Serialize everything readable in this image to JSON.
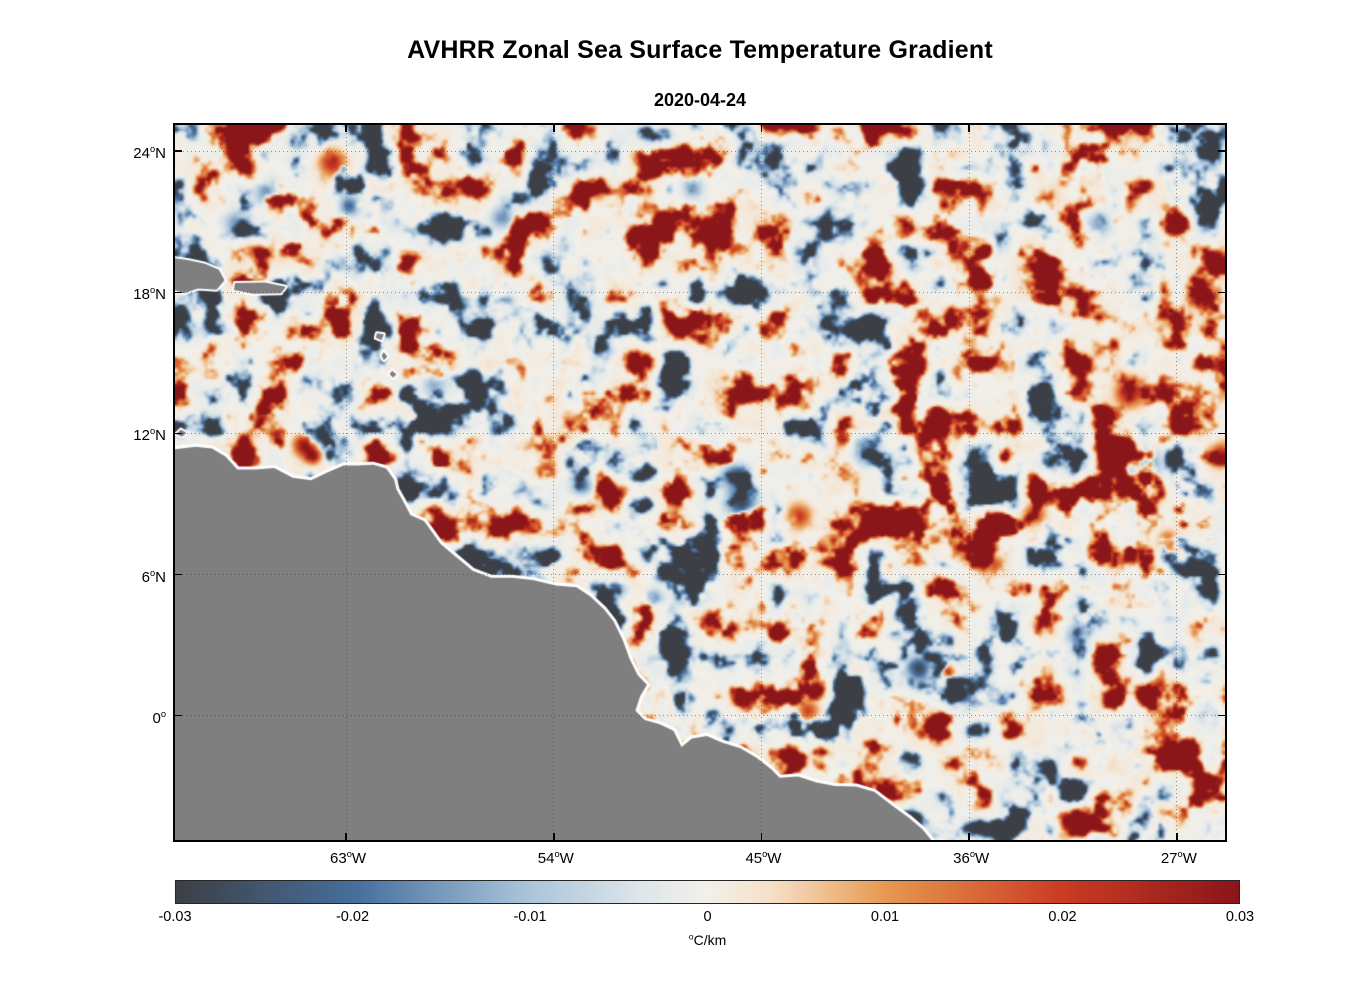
{
  "figure": {
    "title": "AVHRR Zonal Sea Surface Temperature Gradient",
    "subtitle": "2020-04-24"
  },
  "chart_data": {
    "type": "heatmap",
    "title": "AVHRR Zonal Sea Surface Temperature Gradient",
    "date": "2020-04-24",
    "units": "°C/km",
    "lon_range": [
      -70.5,
      -25.0
    ],
    "lat_range": [
      -5.2,
      25.2
    ],
    "lon_ticks": [
      {
        "value": -63,
        "base": "63",
        "sup": "o",
        "suffix": "W"
      },
      {
        "value": -54,
        "base": "54",
        "sup": "o",
        "suffix": "W"
      },
      {
        "value": -45,
        "base": "45",
        "sup": "o",
        "suffix": "W"
      },
      {
        "value": -36,
        "base": "36",
        "sup": "o",
        "suffix": "W"
      },
      {
        "value": -27,
        "base": "27",
        "sup": "o",
        "suffix": "W"
      }
    ],
    "lat_ticks": [
      {
        "value": 24,
        "base": "24",
        "sup": "o",
        "suffix": "N"
      },
      {
        "value": 18,
        "base": "18",
        "sup": "o",
        "suffix": "N"
      },
      {
        "value": 12,
        "base": "12",
        "sup": "o",
        "suffix": "N"
      },
      {
        "value": 6,
        "base": "6",
        "sup": "o",
        "suffix": "N"
      },
      {
        "value": 0,
        "base": "0",
        "sup": "o",
        "suffix": ""
      }
    ],
    "grid": {
      "style": "dotted",
      "color": "rgba(30,55,150,0.55)"
    },
    "colorbar": {
      "min": -0.03,
      "max": 0.03,
      "tick_values": [
        -0.03,
        -0.02,
        -0.01,
        0,
        0.01,
        0.02,
        0.03
      ],
      "tick_labels": [
        "-0.03",
        "-0.02",
        "-0.01",
        "0",
        "0.01",
        "0.02",
        "0.03"
      ],
      "unit_sup": "o",
      "unit_text": "C/km"
    },
    "colormap": [
      [
        0.0,
        "#3c3f44"
      ],
      [
        0.17,
        "#476f9e"
      ],
      [
        0.33,
        "#a9c4da"
      ],
      [
        0.44,
        "#dfe7ea"
      ],
      [
        0.5,
        "#f2f0ea"
      ],
      [
        0.56,
        "#f6e0c8"
      ],
      [
        0.67,
        "#e6974e"
      ],
      [
        0.83,
        "#cc3d24"
      ],
      [
        1.0,
        "#8a1519"
      ]
    ],
    "land": {
      "color": "#7f7f7f",
      "halo": "#ffffff",
      "mainland": [
        [
          -70.6,
          11.4
        ],
        [
          -69.6,
          11.52
        ],
        [
          -68.9,
          11.45
        ],
        [
          -68.3,
          11.1
        ],
        [
          -67.8,
          10.55
        ],
        [
          -67.0,
          10.55
        ],
        [
          -66.2,
          10.62
        ],
        [
          -65.4,
          10.2
        ],
        [
          -64.6,
          10.1
        ],
        [
          -63.9,
          10.42
        ],
        [
          -63.2,
          10.72
        ],
        [
          -62.6,
          10.72
        ],
        [
          -61.9,
          10.75
        ],
        [
          -61.35,
          10.6
        ],
        [
          -61.0,
          10.12
        ],
        [
          -60.9,
          9.7
        ],
        [
          -60.68,
          9.32
        ],
        [
          -60.3,
          8.62
        ],
        [
          -59.7,
          8.35
        ],
        [
          -59.0,
          7.4
        ],
        [
          -58.4,
          6.9
        ],
        [
          -57.6,
          6.25
        ],
        [
          -56.8,
          5.95
        ],
        [
          -55.9,
          5.95
        ],
        [
          -55.0,
          5.85
        ],
        [
          -54.0,
          5.62
        ],
        [
          -53.1,
          5.55
        ],
        [
          -52.5,
          5.15
        ],
        [
          -51.9,
          4.6
        ],
        [
          -51.5,
          4.1
        ],
        [
          -51.1,
          3.3
        ],
        [
          -50.8,
          2.5
        ],
        [
          -50.45,
          1.8
        ],
        [
          -50.05,
          1.4
        ],
        [
          -50.35,
          0.9
        ],
        [
          -50.55,
          0.3
        ],
        [
          -50.15,
          -0.1
        ],
        [
          -49.5,
          -0.28
        ],
        [
          -48.9,
          -0.55
        ],
        [
          -48.55,
          -1.25
        ],
        [
          -48.1,
          -0.88
        ],
        [
          -47.45,
          -0.78
        ],
        [
          -46.8,
          -1.05
        ],
        [
          -46.0,
          -1.3
        ],
        [
          -45.3,
          -1.7
        ],
        [
          -44.65,
          -2.2
        ],
        [
          -44.3,
          -2.55
        ],
        [
          -43.5,
          -2.5
        ],
        [
          -42.7,
          -2.75
        ],
        [
          -41.9,
          -2.9
        ],
        [
          -41.0,
          -2.92
        ],
        [
          -40.2,
          -3.15
        ],
        [
          -39.4,
          -3.75
        ],
        [
          -38.7,
          -4.25
        ],
        [
          -38.1,
          -4.75
        ],
        [
          -37.65,
          -5.3
        ],
        [
          -70.6,
          -5.3
        ]
      ],
      "islands": [
        [
          [
            -70.6,
            19.55
          ],
          [
            -69.9,
            19.45
          ],
          [
            -69.2,
            19.3
          ],
          [
            -68.6,
            19.05
          ],
          [
            -68.35,
            18.6
          ],
          [
            -68.7,
            18.2
          ],
          [
            -69.5,
            18.25
          ],
          [
            -70.1,
            18.05
          ],
          [
            -70.6,
            18.2
          ]
        ],
        [
          [
            -67.9,
            18.48
          ],
          [
            -66.6,
            18.5
          ],
          [
            -65.7,
            18.32
          ],
          [
            -65.9,
            18.05
          ],
          [
            -67.1,
            18.02
          ],
          [
            -67.95,
            18.18
          ]
        ],
        [
          [
            -70.25,
            12.25
          ],
          [
            -70.0,
            12.1
          ],
          [
            -70.2,
            11.95
          ],
          [
            -70.45,
            12.05
          ]
        ],
        [
          [
            -61.75,
            16.35
          ],
          [
            -61.45,
            16.3
          ],
          [
            -61.55,
            16.05
          ],
          [
            -61.8,
            16.15
          ]
        ],
        [
          [
            -61.45,
            15.55
          ],
          [
            -61.3,
            15.35
          ],
          [
            -61.45,
            15.2
          ],
          [
            -61.55,
            15.4
          ]
        ],
        [
          [
            -61.1,
            14.75
          ],
          [
            -60.9,
            14.6
          ],
          [
            -61.05,
            14.45
          ],
          [
            -61.2,
            14.6
          ]
        ]
      ]
    },
    "features": [
      {
        "lon": -64.95,
        "lat": 11.6,
        "value": 0.03,
        "radius": 0.45
      },
      {
        "lon": -64.55,
        "lat": 11.15,
        "value": 0.027,
        "radius": 0.32
      },
      {
        "lon": -63.7,
        "lat": 23.6,
        "value": 0.024,
        "radius": 0.55
      },
      {
        "lon": -63.0,
        "lat": 21.8,
        "value": -0.02,
        "radius": 0.45
      },
      {
        "lon": -66.6,
        "lat": 22.4,
        "value": -0.015,
        "radius": 0.5
      },
      {
        "lon": -68.0,
        "lat": 21.1,
        "value": -0.013,
        "radius": 0.45
      },
      {
        "lon": -56.4,
        "lat": 21.3,
        "value": -0.016,
        "radius": 0.5
      },
      {
        "lon": -52.2,
        "lat": 22.4,
        "value": 0.015,
        "radius": 0.4
      },
      {
        "lon": -48.1,
        "lat": 22.6,
        "value": -0.015,
        "radius": 0.45
      },
      {
        "lon": -46.3,
        "lat": 10.3,
        "value": -0.026,
        "radius": 0.5
      },
      {
        "lon": -46.0,
        "lat": 9.2,
        "value": -0.027,
        "radius": 0.6
      },
      {
        "lon": -43.5,
        "lat": 8.6,
        "value": 0.02,
        "radius": 0.5
      },
      {
        "lon": -47.35,
        "lat": 4.15,
        "value": 0.027,
        "radius": 0.33
      },
      {
        "lon": -52.9,
        "lat": 9.9,
        "value": -0.02,
        "radius": 0.4
      },
      {
        "lon": -49.8,
        "lat": 5.1,
        "value": -0.017,
        "radius": 0.35
      },
      {
        "lon": -38.3,
        "lat": 2.1,
        "value": -0.027,
        "radius": 0.5
      },
      {
        "lon": -37.15,
        "lat": 1.9,
        "value": 0.027,
        "radius": 0.35
      },
      {
        "lon": -43.1,
        "lat": 0.3,
        "value": 0.018,
        "radius": 0.4
      },
      {
        "lon": -40.5,
        "lat": 11.3,
        "value": -0.018,
        "radius": 0.55
      },
      {
        "lon": -33.3,
        "lat": 8.7,
        "value": 0.022,
        "radius": 0.45
      },
      {
        "lon": -29.2,
        "lat": 13.9,
        "value": 0.027,
        "radius": 0.6
      },
      {
        "lon": -28.5,
        "lat": 10.8,
        "value": -0.023,
        "radius": 0.65
      },
      {
        "lon": -26.2,
        "lat": 17.9,
        "value": 0.024,
        "radius": 0.45
      },
      {
        "lon": -25.2,
        "lat": 11.2,
        "value": 0.025,
        "radius": 0.5
      },
      {
        "lon": -30.5,
        "lat": 21.0,
        "value": -0.013,
        "radius": 0.5
      },
      {
        "lon": -59.3,
        "lat": 14.2,
        "value": -0.011,
        "radius": 0.5
      },
      {
        "lon": -35.0,
        "lat": 6.5,
        "value": 0.018,
        "radius": 0.45
      },
      {
        "lon": -31.5,
        "lat": 3.5,
        "value": -0.015,
        "radius": 0.5
      },
      {
        "lon": -27.5,
        "lat": 7.5,
        "value": 0.018,
        "radius": 0.5
      }
    ]
  }
}
